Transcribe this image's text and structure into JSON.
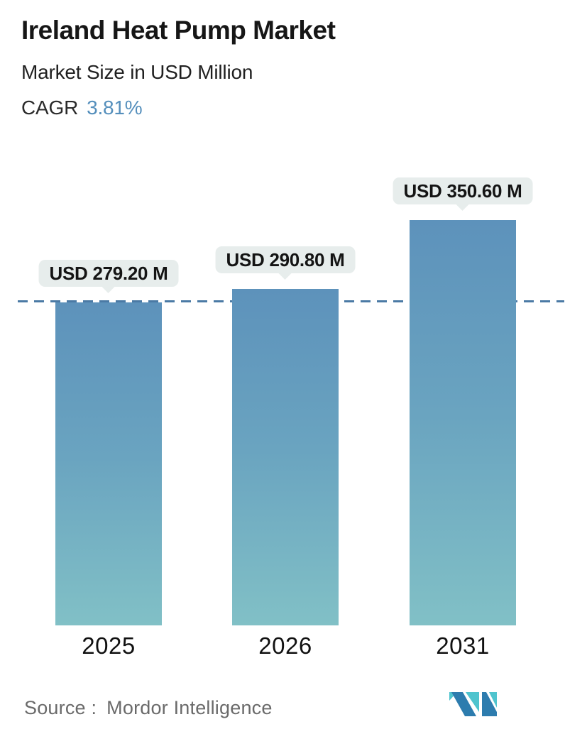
{
  "header": {
    "title": "Ireland Heat Pump Market",
    "subtitle": "Market Size in USD Million",
    "cagr_label": "CAGR",
    "cagr_value": "3.81%"
  },
  "chart_data": {
    "type": "bar",
    "title": "Ireland Heat Pump Market",
    "subtitle": "Market Size in USD Million",
    "cagr_percent": 3.81,
    "categories": [
      "2025",
      "2026",
      "2031"
    ],
    "values": [
      279.2,
      290.8,
      350.6
    ],
    "bar_labels": [
      "USD 279.20 M",
      "USD 290.80 M",
      "USD 350.60 M"
    ],
    "unit": "USD Million",
    "ylim": [
      0,
      360
    ],
    "grid": false,
    "legend": "none",
    "reference_line": {
      "style": "dashed",
      "value": 279.2,
      "orientation": "horizontal"
    }
  },
  "footer": {
    "source_label": "Source :",
    "source_value": "Mordor Intelligence",
    "logo_name": "mordor-intelligence-logo"
  },
  "colors": {
    "cagr_value": "#558fbc",
    "dashed_line": "#4b7aa5",
    "bar_gradient_top": "#5d92bb",
    "bar_gradient_mid": "#6aa4c0",
    "bar_gradient_bottom": "#81c0c6",
    "bubble_background": "#e7edec",
    "bubble_text": "#141414",
    "title_text": "#161616",
    "source_text": "#6a6a6a",
    "logo_teal": "#4fc4ce",
    "logo_blue": "#2d7cae"
  }
}
